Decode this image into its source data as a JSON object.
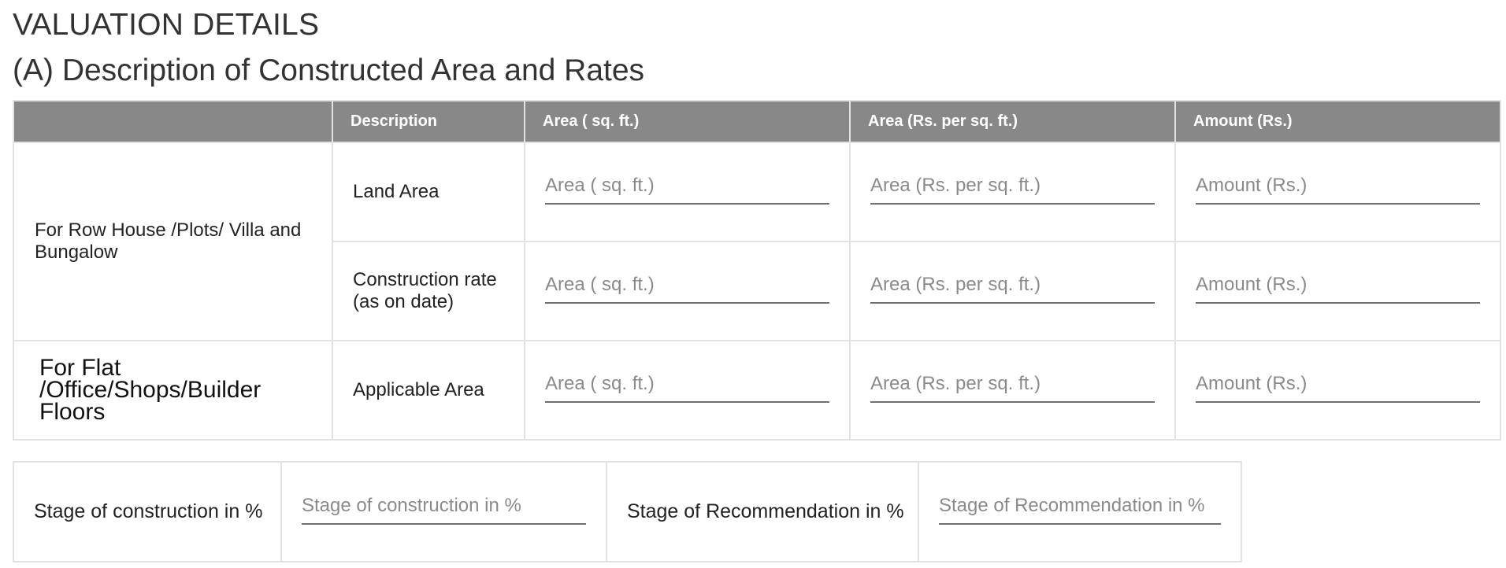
{
  "page": {
    "title": "VALUATION DETAILS",
    "subtitle": "(A) Description of Constructed Area and Rates"
  },
  "rates_table": {
    "headers": [
      "",
      "Description",
      "Area ( sq. ft.)",
      "Area (Rs. per sq. ft.)",
      "Amount (Rs.)"
    ],
    "groups": [
      {
        "category": "For Row House /Plots/ Villa and Bungalow",
        "rows": [
          {
            "description": "Land Area",
            "area_placeholder": "Area ( sq. ft.)",
            "area_value": "",
            "rate_placeholder": "Area (Rs. per sq. ft.)",
            "rate_value": "",
            "amount_placeholder": "Amount (Rs.)",
            "amount_value": ""
          },
          {
            "description": "Construction rate (as on date)",
            "area_placeholder": "Area ( sq. ft.)",
            "area_value": "",
            "rate_placeholder": "Area (Rs. per sq. ft.)",
            "rate_value": "",
            "amount_placeholder": "Amount (Rs.)",
            "amount_value": ""
          }
        ]
      },
      {
        "category": "For Flat /Office/Shops/Builder Floors",
        "rows": [
          {
            "description": "Applicable Area",
            "area_placeholder": "Area ( sq. ft.)",
            "area_value": "",
            "rate_placeholder": "Area (Rs. per sq. ft.)",
            "rate_value": "",
            "amount_placeholder": "Amount (Rs.)",
            "amount_value": ""
          }
        ]
      }
    ]
  },
  "stage": {
    "construction_label": "Stage of construction in %",
    "construction_placeholder": "Stage of construction in %",
    "construction_value": "",
    "recommendation_label": "Stage of Recommendation in %",
    "recommendation_placeholder": "Stage of Recommendation in %",
    "recommendation_value": ""
  },
  "colors": {
    "header_bg": "#888888",
    "header_text": "#ffffff",
    "border": "#e2e2e2",
    "field_underline": "#6f6f6f",
    "placeholder": "#8a8a8a"
  }
}
